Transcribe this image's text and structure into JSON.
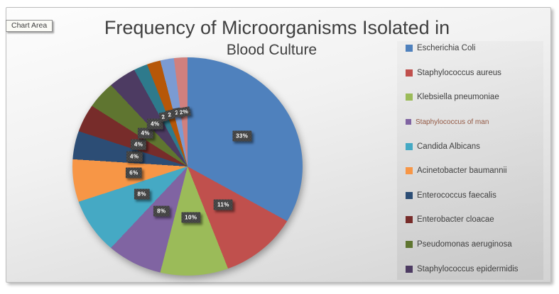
{
  "tooltip": {
    "label": "Chart Area"
  },
  "title": {
    "line1": "Frequency of Microorganisms Isolated in",
    "line2": "Blood Culture",
    "color": "#3F3F3F"
  },
  "chart_data": {
    "type": "pie",
    "title": "Frequency of Microorganisms Isolated in Blood Culture",
    "legend_position": "right",
    "total": 100,
    "slices": [
      {
        "label": "Escherichia Coli",
        "value": 33,
        "display": "33%",
        "color": "#4F81BD"
      },
      {
        "label": "Staphylococcus aureus",
        "value": 11,
        "display": "11%",
        "color": "#C0504D"
      },
      {
        "label": "Klebsiella pneumoniae",
        "value": 10,
        "display": "10%",
        "color": "#9BBB59"
      },
      {
        "label": "Staphylococcus of man",
        "value": 8,
        "display": "8%",
        "color": "#8064A2",
        "legend_text_color": "#935843"
      },
      {
        "label": "Candida Albicans",
        "value": 8,
        "display": "8%",
        "color": "#45A9C4"
      },
      {
        "label": "Acinetobacter baumannii",
        "value": 6,
        "display": "6%",
        "color": "#F79646"
      },
      {
        "label": "Enterococcus faecalis",
        "value": 4,
        "display": "4%",
        "color": "#2C4D75"
      },
      {
        "label": "Enterobacter cloacae",
        "value": 4,
        "display": "4%",
        "color": "#772C2A"
      },
      {
        "label": "Pseudomonas aeruginosa",
        "value": 4,
        "display": "4%",
        "color": "#5F7530"
      },
      {
        "label": "Staphylococcus epidermidis",
        "value": 4,
        "display": "4%",
        "color": "#4D3B62"
      },
      {
        "label": "",
        "value": 2,
        "display": "2",
        "color": "#2E7A8C"
      },
      {
        "label": "",
        "value": 2,
        "display": "2",
        "color": "#B65708"
      },
      {
        "label": "",
        "value": 2,
        "display": "2",
        "color": "#7B9BD3"
      },
      {
        "label": "",
        "value": 2,
        "display": "2%",
        "color": "#D0807E"
      }
    ]
  }
}
